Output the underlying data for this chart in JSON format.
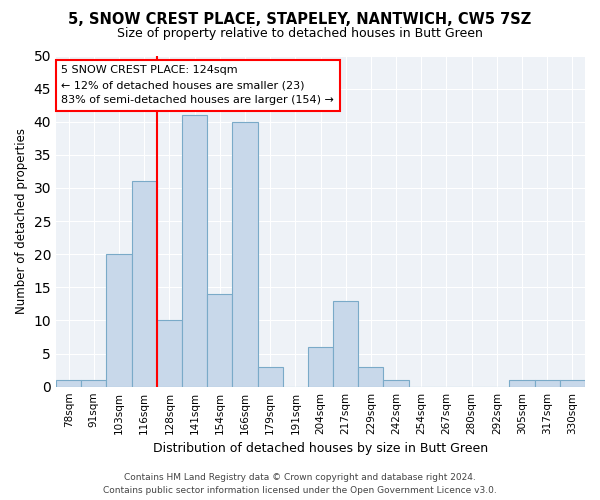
{
  "title": "5, SNOW CREST PLACE, STAPELEY, NANTWICH, CW5 7SZ",
  "subtitle": "Size of property relative to detached houses in Butt Green",
  "xlabel": "Distribution of detached houses by size in Butt Green",
  "ylabel": "Number of detached properties",
  "bar_color": "#c8d8ea",
  "bar_edge_color": "#7aaac8",
  "categories": [
    "78sqm",
    "91sqm",
    "103sqm",
    "116sqm",
    "128sqm",
    "141sqm",
    "154sqm",
    "166sqm",
    "179sqm",
    "191sqm",
    "204sqm",
    "217sqm",
    "229sqm",
    "242sqm",
    "254sqm",
    "267sqm",
    "280sqm",
    "292sqm",
    "305sqm",
    "317sqm",
    "330sqm"
  ],
  "values": [
    1,
    1,
    20,
    31,
    10,
    41,
    14,
    40,
    3,
    0,
    6,
    13,
    3,
    1,
    0,
    0,
    0,
    0,
    1,
    1,
    1
  ],
  "ylim": [
    0,
    50
  ],
  "yticks": [
    0,
    5,
    10,
    15,
    20,
    25,
    30,
    35,
    40,
    45,
    50
  ],
  "annotation_line1": "5 SNOW CREST PLACE: 124sqm",
  "annotation_line2": "← 12% of detached houses are smaller (23)",
  "annotation_line3": "83% of semi-detached houses are larger (154) →",
  "annotation_box_color": "white",
  "annotation_box_edge_color": "red",
  "vline_x_index": 3.5,
  "vline_color": "red",
  "background_color": "#eef2f7",
  "grid_color": "#ffffff",
  "footer_line1": "Contains HM Land Registry data © Crown copyright and database right 2024.",
  "footer_line2": "Contains public sector information licensed under the Open Government Licence v3.0."
}
